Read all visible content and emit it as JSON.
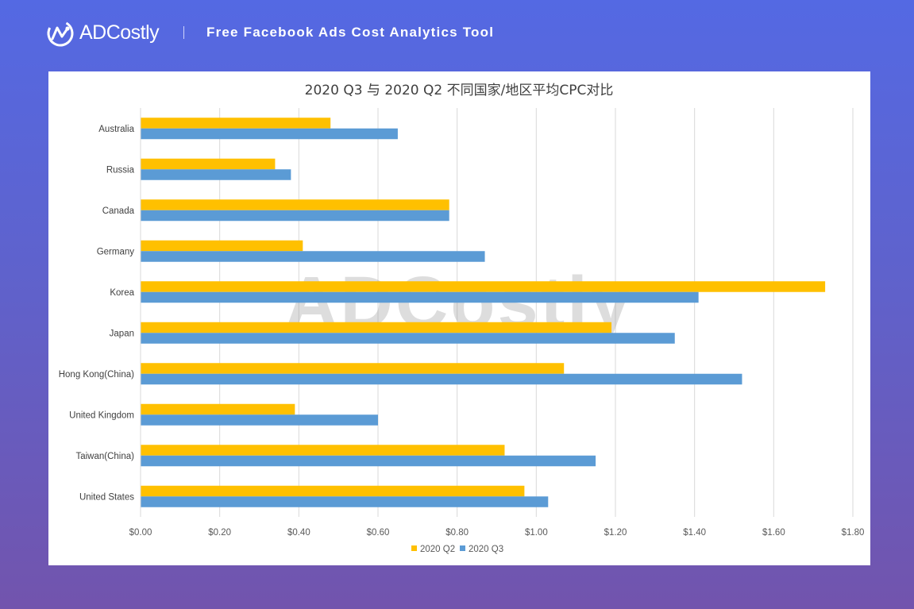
{
  "header": {
    "brand": "ADCostly",
    "tagline": "Free Facebook Ads Cost Analytics Tool"
  },
  "colors": {
    "q2": "#FFC000",
    "q3": "#5B9BD5"
  },
  "watermark": "ADCostly",
  "chart_data": {
    "type": "bar",
    "orientation": "horizontal",
    "title": "2020 Q3 与 2020 Q2 不同国家/地区平均CPC对比",
    "xlabel": "",
    "ylabel": "",
    "categories": [
      "Australia",
      "Russia",
      "Canada",
      "Germany",
      "Korea",
      "Japan",
      "Hong Kong(China)",
      "United Kingdom",
      "Taiwan(China)",
      "United States"
    ],
    "series": [
      {
        "name": "2020 Q2",
        "values": [
          0.48,
          0.34,
          0.78,
          0.41,
          1.73,
          1.19,
          1.07,
          0.39,
          0.92,
          0.97
        ]
      },
      {
        "name": "2020 Q3",
        "values": [
          0.65,
          0.38,
          0.78,
          0.87,
          1.41,
          1.35,
          1.52,
          0.6,
          1.15,
          1.03
        ]
      }
    ],
    "xlim": [
      0,
      1.8
    ],
    "xticks": [
      "$0.00",
      "$0.20",
      "$0.40",
      "$0.60",
      "$0.80",
      "$1.00",
      "$1.20",
      "$1.40",
      "$1.60",
      "$1.80"
    ],
    "grid": "vertical",
    "legend": "bottom"
  }
}
